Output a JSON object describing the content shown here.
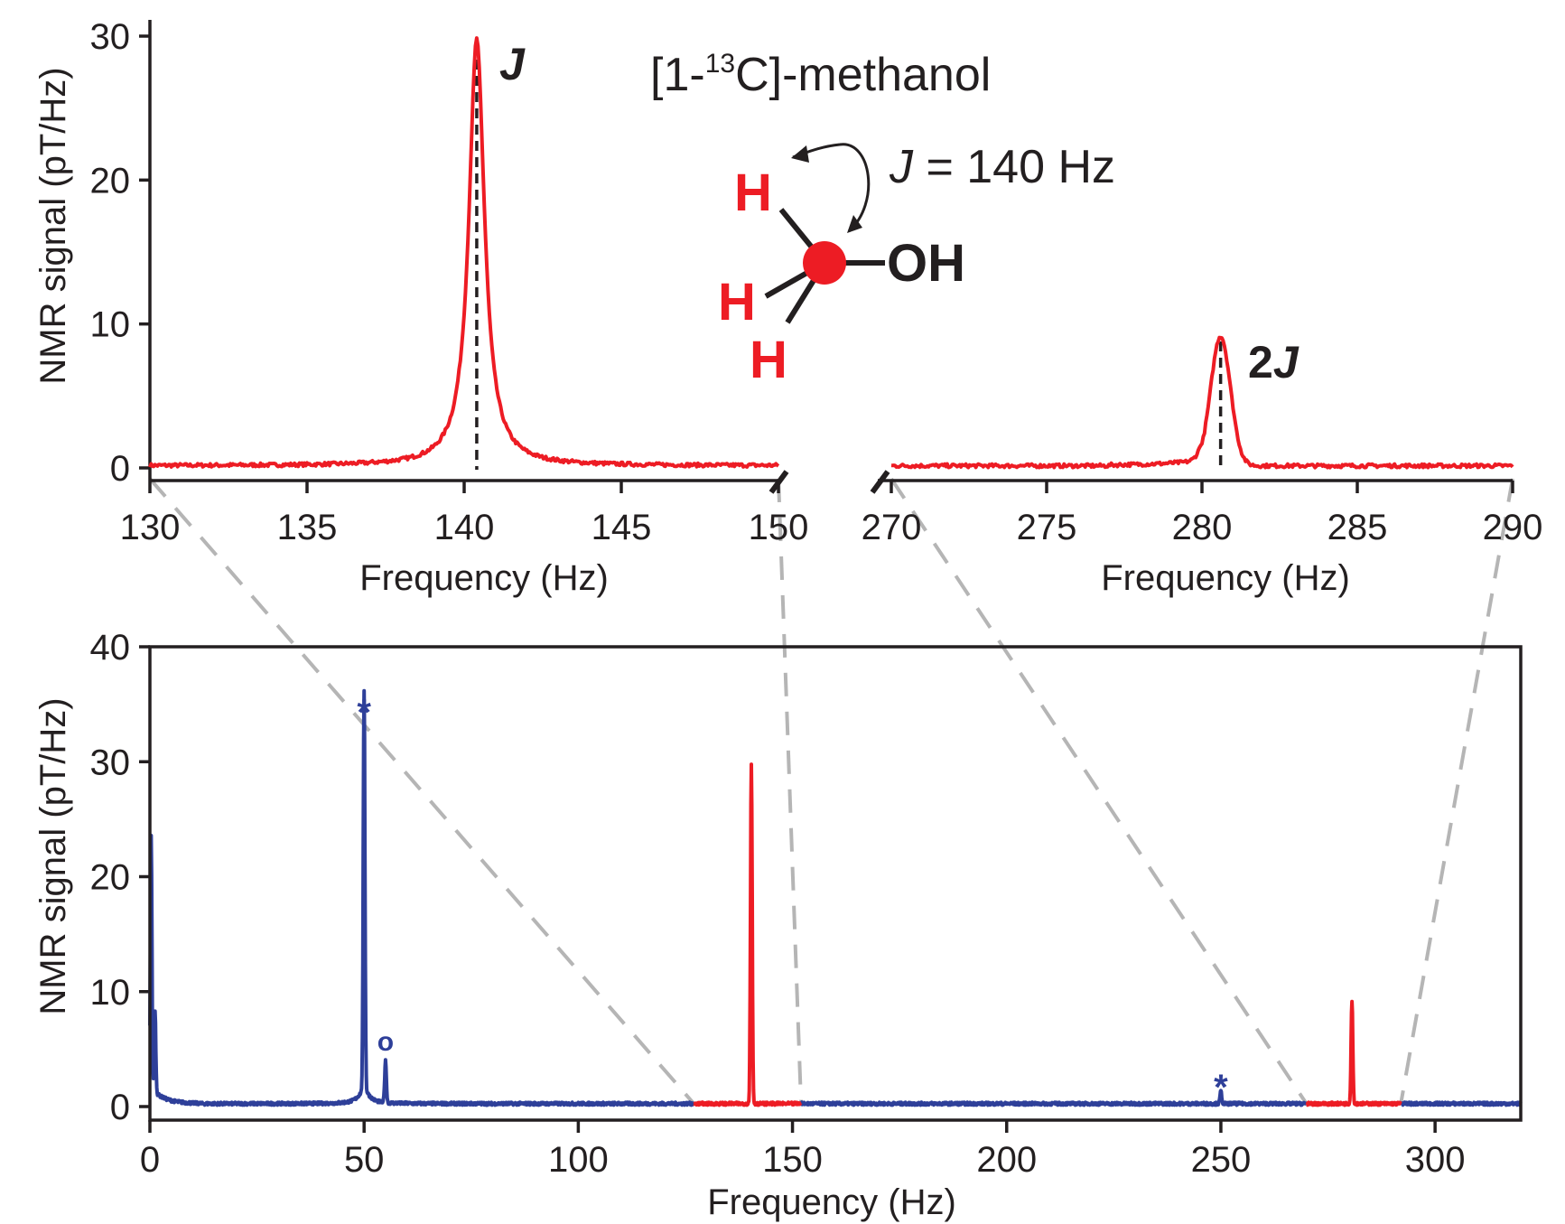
{
  "colors": {
    "sample": "#ed1c24",
    "background": "#2e3f99",
    "ink": "#231f20",
    "zoom_lines": "#b5b5b5"
  },
  "annotations": {
    "compound_prefix": "[1-",
    "compound_sup": "13",
    "compound_suffix": "C]-methanol",
    "j_label": "J",
    "coupling_j": "J",
    "coupling_rest": " = 140 Hz",
    "twoj_num": "2",
    "twoj_j": "J",
    "atom_h": "H",
    "atom_oh": "OH",
    "star": "*",
    "circle": "o"
  },
  "chart_data": [
    {
      "type": "line",
      "panel": "top-left",
      "xlabel": "Frequency (Hz)",
      "ylabel": "NMR signal (pT/Hz)",
      "xlim": [
        130,
        150
      ],
      "ylim": [
        0,
        30
      ],
      "xticks": [
        "130",
        "135",
        "140",
        "145",
        "150"
      ],
      "yticks": [
        "0",
        "10",
        "20",
        "30"
      ],
      "series": [
        {
          "color": "#ed1c24",
          "peaks": [
            {
              "x": 140.4,
              "y": 29.6,
              "width": 0.3
            }
          ],
          "baseline": 0.15
        }
      ],
      "reference_lines": [
        {
          "x": 140.4,
          "label": "J"
        }
      ]
    },
    {
      "type": "line",
      "panel": "top-right",
      "xlabel": "Frequency (Hz)",
      "xlim": [
        270,
        290
      ],
      "ylim": [
        0,
        30
      ],
      "xticks": [
        "270",
        "275",
        "280",
        "285",
        "290"
      ],
      "series": [
        {
          "color": "#ed1c24",
          "peaks": [
            {
              "x": 280.6,
              "y": 9.0,
              "width": 0.45
            }
          ],
          "baseline": 0.15
        }
      ],
      "reference_lines": [
        {
          "x": 280.6,
          "label": "2J"
        }
      ]
    },
    {
      "type": "line",
      "panel": "bottom",
      "xlabel": "Frequency (Hz)",
      "ylabel": "NMR signal (pT/Hz)",
      "xlim": [
        0,
        320
      ],
      "ylim": [
        0,
        40
      ],
      "xticks": [
        "0",
        "50",
        "100",
        "150",
        "200",
        "250",
        "300"
      ],
      "yticks": [
        "0",
        "10",
        "20",
        "30",
        "40"
      ],
      "series": [
        {
          "color": "#2e3f99",
          "segments": [
            [
              0,
              127
            ],
            [
              152,
              270
            ],
            [
              292,
              320
            ]
          ],
          "features": [
            {
              "x": 0.3,
              "y": 22
            },
            {
              "x": 1.2,
              "y": 7
            },
            {
              "x": 50,
              "y": 34.8,
              "marker": "*"
            },
            {
              "x": 55,
              "y": 3.6,
              "marker": "o"
            },
            {
              "x": 250,
              "y": 1.1,
              "marker": "*"
            }
          ]
        },
        {
          "color": "#ed1c24",
          "segments": [
            [
              127,
              152
            ],
            [
              270,
              292
            ]
          ],
          "features": [
            {
              "x": 140.4,
              "y": 29.5
            },
            {
              "x": 280.6,
              "y": 9.0
            }
          ]
        }
      ]
    }
  ]
}
